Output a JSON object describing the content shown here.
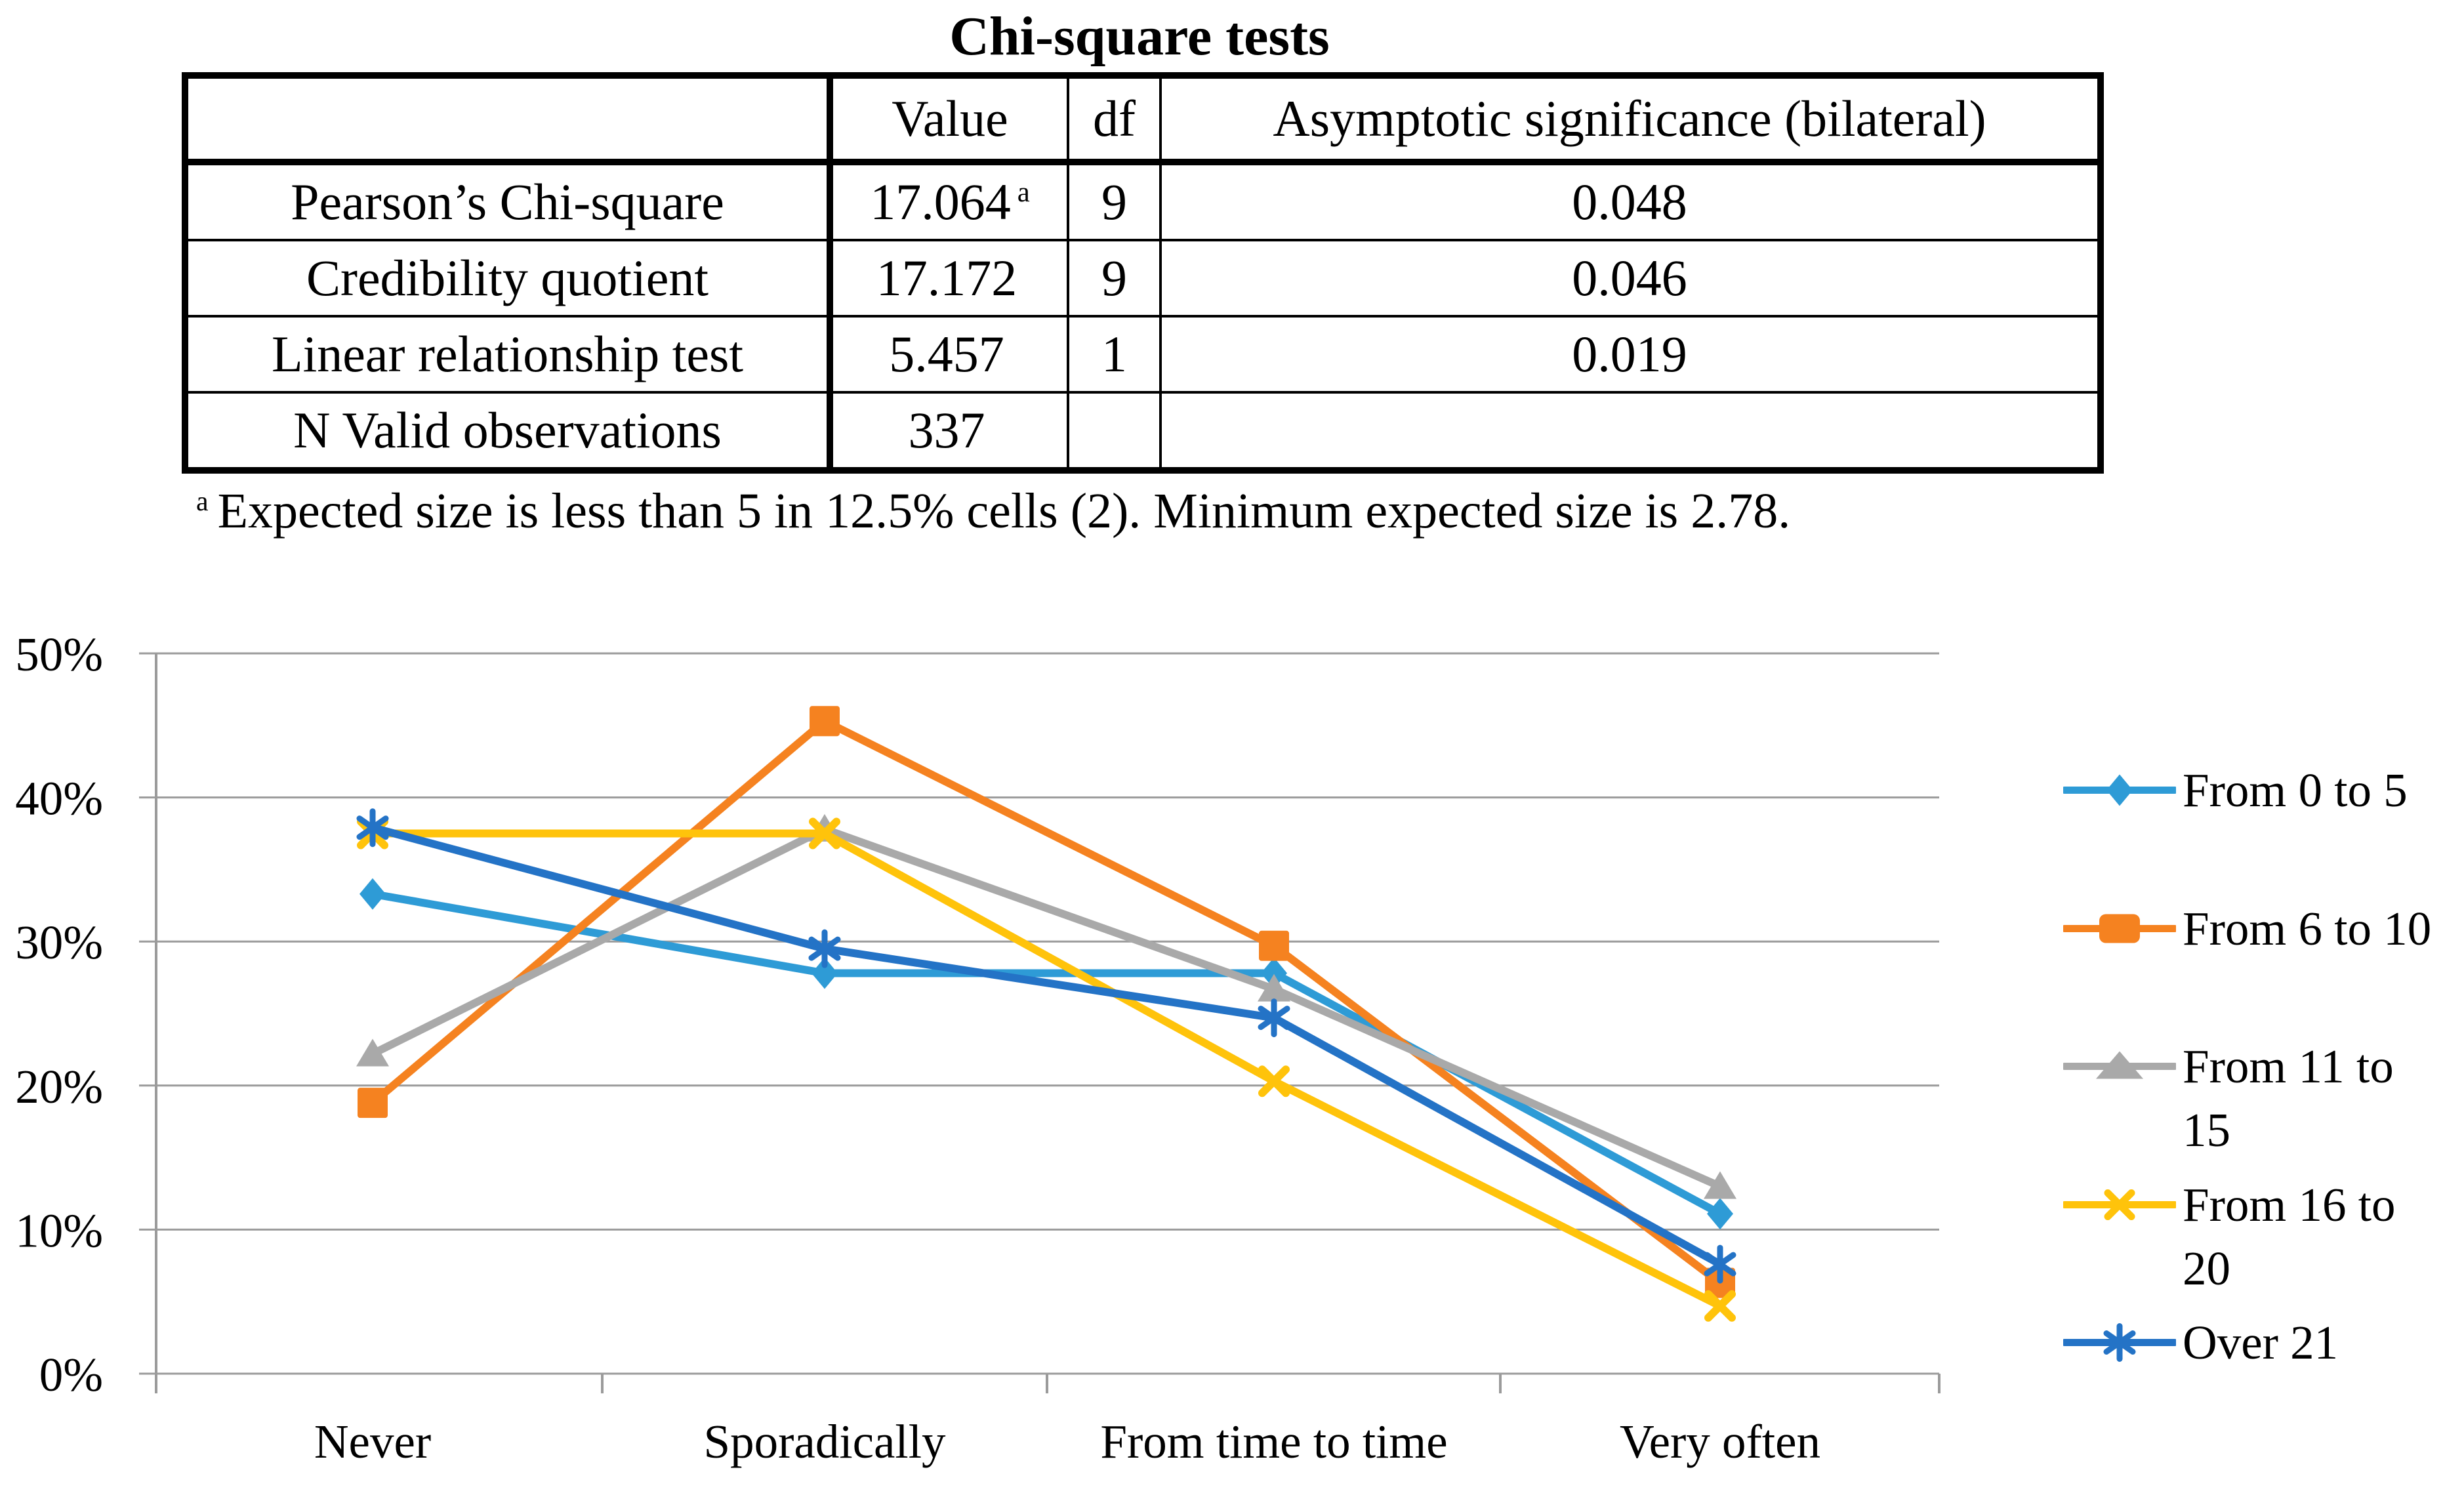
{
  "title": "Chi-square tests",
  "table": {
    "columns": [
      "",
      "Value",
      "df",
      "Asymptotic significance (bilateral)"
    ],
    "rows": [
      {
        "label": "Pearson’s Chi-square",
        "value": "17.064",
        "value_sup": "a",
        "df": "9",
        "sig": "0.048"
      },
      {
        "label": "Credibility quotient",
        "value": "17.172",
        "value_sup": "",
        "df": "9",
        "sig": "0.046"
      },
      {
        "label": "Linear relationship test",
        "value": "5.457",
        "value_sup": "",
        "df": "1",
        "sig": "0.019"
      },
      {
        "label": "N Valid observations",
        "value": "337",
        "value_sup": "",
        "df": "",
        "sig": ""
      }
    ],
    "footnote_marker": "a",
    "footnote": "Expected size is less than 5 in 12.5% cells (2). Minimum expected size is 2.78."
  },
  "chart_data": {
    "type": "line",
    "categories": [
      "Never",
      "Sporadically",
      "From time to time",
      "Very often"
    ],
    "series": [
      {
        "name": "From 0 to 5",
        "label_lines": [
          "From 0 to 5"
        ],
        "marker": "diamond",
        "color": "#2E9BD6",
        "values": [
          33.3,
          27.8,
          27.8,
          11.1
        ]
      },
      {
        "name": "From 6 to 10",
        "label_lines": [
          "From 6 to 10"
        ],
        "marker": "square",
        "color": "#F58220",
        "values": [
          18.8,
          45.3,
          29.7,
          6.3
        ]
      },
      {
        "name": "From 11 to 15",
        "label_lines": [
          "From 11 to",
          "15"
        ],
        "marker": "triangle",
        "color": "#A9A9A9",
        "values": [
          22.2,
          37.8,
          26.7,
          13.0
        ]
      },
      {
        "name": "From 16 to 20",
        "label_lines": [
          "From 16 to",
          "20"
        ],
        "marker": "x",
        "color": "#FFC30B",
        "values": [
          37.5,
          37.5,
          20.3,
          4.7
        ]
      },
      {
        "name": "Over 21",
        "label_lines": [
          "Over 21"
        ],
        "marker": "asterisk",
        "color": "#2473C6",
        "values": [
          37.9,
          29.5,
          24.7,
          7.6
        ]
      }
    ],
    "ylim": [
      0,
      50
    ],
    "ytick_step": 10,
    "ytick_labels": [
      "0%",
      "10%",
      "20%",
      "30%",
      "40%",
      "50%"
    ],
    "grid": true,
    "legend_position": "right",
    "axis_color": "#9B9B9B",
    "text_color": "#000000"
  }
}
